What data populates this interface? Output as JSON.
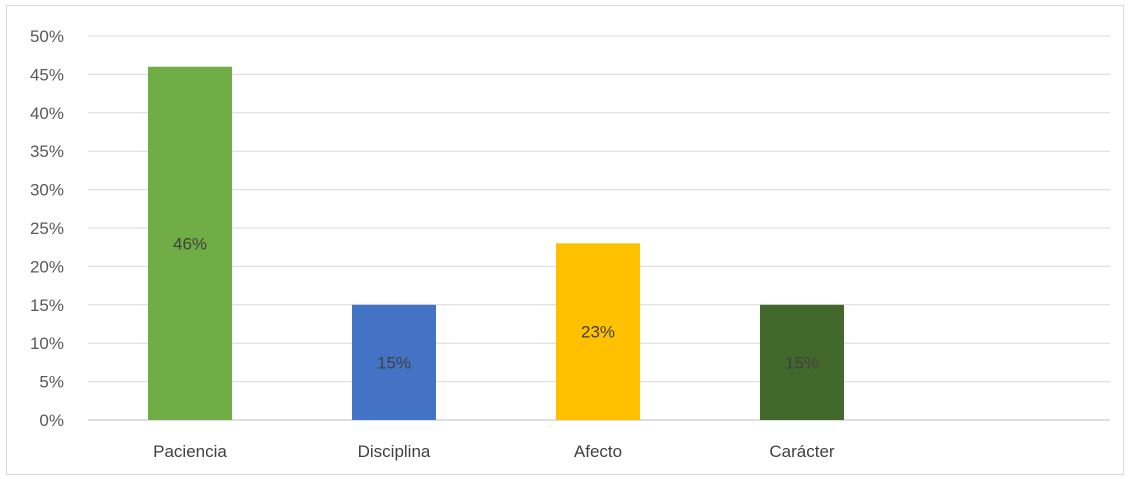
{
  "chart_data": {
    "type": "bar",
    "categories": [
      "Paciencia",
      "Disciplina",
      "Afecto",
      "Carácter"
    ],
    "values": [
      0.46,
      0.15,
      0.23,
      0.15
    ],
    "data_labels": [
      "46%",
      "15%",
      "23%",
      "15%"
    ],
    "colors": [
      "#70ad47",
      "#4472c4",
      "#ffc000",
      "#43682b"
    ],
    "ylim": [
      0,
      0.5
    ],
    "y_ticks": [
      0,
      0.05,
      0.1,
      0.15,
      0.2,
      0.25,
      0.3,
      0.35,
      0.4,
      0.45,
      0.5
    ],
    "y_tick_labels": [
      "0%",
      "5%",
      "10%",
      "15%",
      "20%",
      "25%",
      "30%",
      "35%",
      "40%",
      "45%",
      "50%"
    ],
    "title": "",
    "xlabel": "",
    "ylabel": "",
    "grid": true,
    "legend": "none"
  }
}
